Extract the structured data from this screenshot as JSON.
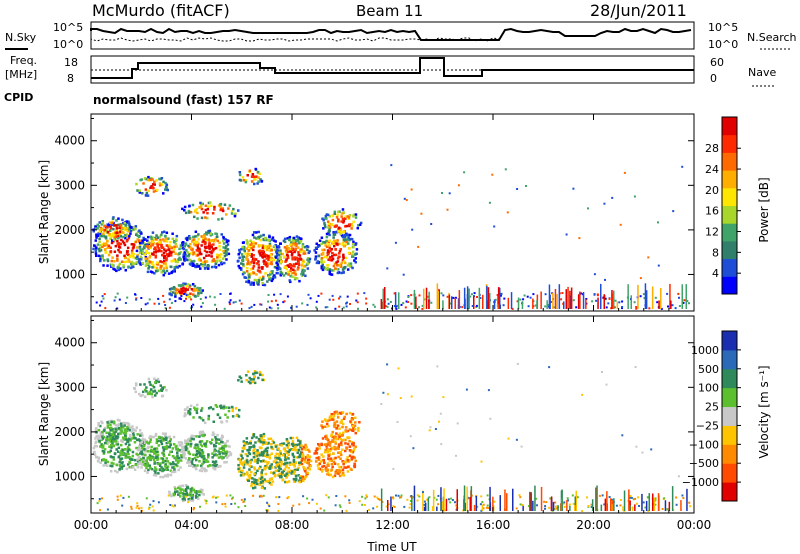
{
  "header": {
    "station": "McMurdo (fitACF)",
    "beam": "Beam 11",
    "date": "28/Jun/2011"
  },
  "noise_panel": {
    "left_label": "N.Sky",
    "right_label": "N.Search",
    "left_ticks": [
      "10^5",
      "10^0"
    ],
    "right_ticks": [
      "10^5",
      "10^0"
    ]
  },
  "freq_panel": {
    "left_label_1": "Freq.",
    "left_label_2": "[MHz]",
    "right_label": "Nave",
    "left_ticks": [
      "18",
      "8"
    ],
    "right_ticks": [
      "60",
      "0"
    ]
  },
  "cpid": {
    "label": "CPID",
    "value": "normalsound (fast) 157 RF"
  },
  "chart_data": [
    {
      "type": "heatmap",
      "title": "",
      "xlabel": "",
      "ylabel": "Slant Range [km]",
      "x_range_hours": [
        0,
        24
      ],
      "ylim": [
        180,
        4600
      ],
      "x_ticks": [
        "00:00",
        "04:00",
        "08:00",
        "12:00",
        "16:00",
        "20:00",
        "00:00"
      ],
      "y_ticks": [
        "1000",
        "2000",
        "3000",
        "4000"
      ],
      "colorbar": {
        "label": "Power [dB]",
        "ticks": [
          "4",
          "8",
          "12",
          "16",
          "20",
          "24",
          "28"
        ],
        "colors": [
          "#0000ff",
          "#1e4ed8",
          "#2f7f6a",
          "#3fa36a",
          "#a8d62a",
          "#ffe600",
          "#ffae00",
          "#ff6a00",
          "#ff2a00",
          "#e00000"
        ]
      }
    },
    {
      "type": "heatmap",
      "title": "",
      "xlabel": "Time UT",
      "ylabel": "Slant Range [km]",
      "x_range_hours": [
        0,
        24
      ],
      "ylim": [
        180,
        4600
      ],
      "x_ticks": [
        "00:00",
        "04:00",
        "08:00",
        "12:00",
        "16:00",
        "20:00",
        "00:00"
      ],
      "y_ticks": [
        "1000",
        "2000",
        "3000",
        "4000"
      ],
      "colorbar": {
        "label": "Velocity [m s⁻¹]",
        "ticks": [
          "1000",
          "500",
          "100",
          "25",
          "−25",
          "−100",
          "−500",
          "−1000"
        ],
        "colors": [
          "#1a2fb0",
          "#2a6ab8",
          "#2e8a5a",
          "#5cc02e",
          "#c8c8c8",
          "#ffc400",
          "#ff8a00",
          "#ff4a00",
          "#e00000"
        ]
      }
    }
  ]
}
